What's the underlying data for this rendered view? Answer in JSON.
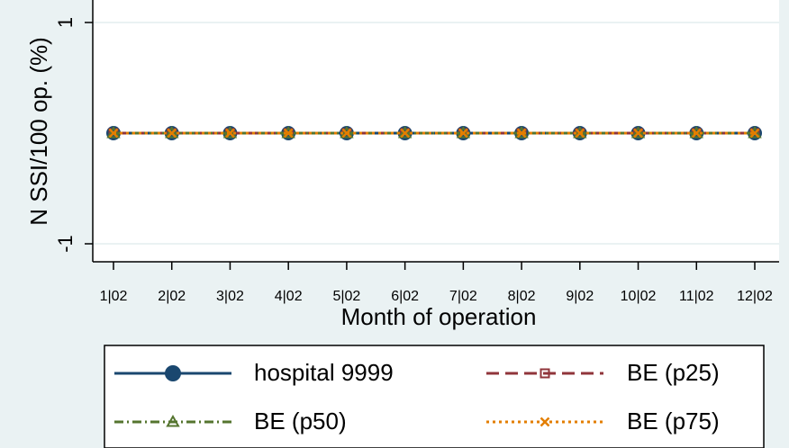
{
  "chart_data": {
    "type": "line",
    "title": "",
    "xlabel": "Month of operation",
    "ylabel": "N SSI/100 op. (%)",
    "categories": [
      "1|02",
      "2|02",
      "3|02",
      "4|02",
      "5|02",
      "6|02",
      "7|02",
      "8|02",
      "9|02",
      "10|02",
      "11|02",
      "12|02"
    ],
    "y_ticks": [
      "1",
      "-1"
    ],
    "y_tick_values": [
      1,
      -1
    ],
    "ylim": [
      -1.2,
      1.2
    ],
    "grid": "horizontal",
    "legend_position": "bottom",
    "series": [
      {
        "name": "hospital 9999",
        "values": [
          0,
          0,
          0,
          0,
          0,
          0,
          0,
          0,
          0,
          0,
          0,
          0
        ],
        "color": "#1a476f",
        "line_style": "solid",
        "marker": "circle"
      },
      {
        "name": "BE (p25)",
        "values": [
          0,
          0,
          0,
          0,
          0,
          0,
          0,
          0,
          0,
          0,
          0,
          0
        ],
        "color": "#90353b",
        "line_style": "dashed",
        "marker": "square-hollow"
      },
      {
        "name": "BE (p50)",
        "values": [
          0,
          0,
          0,
          0,
          0,
          0,
          0,
          0,
          0,
          0,
          0,
          0
        ],
        "color": "#55752f",
        "line_style": "dash-dot",
        "marker": "triangle-hollow"
      },
      {
        "name": "BE (p75)",
        "values": [
          0,
          0,
          0,
          0,
          0,
          0,
          0,
          0,
          0,
          0,
          0,
          0
        ],
        "color": "#e37e00",
        "line_style": "dotted",
        "marker": "x"
      }
    ],
    "colors": {
      "background": "#eaf2f3",
      "plot_background": "#ffffff",
      "grid": "#eaf2f3",
      "axis": "#000000"
    }
  }
}
